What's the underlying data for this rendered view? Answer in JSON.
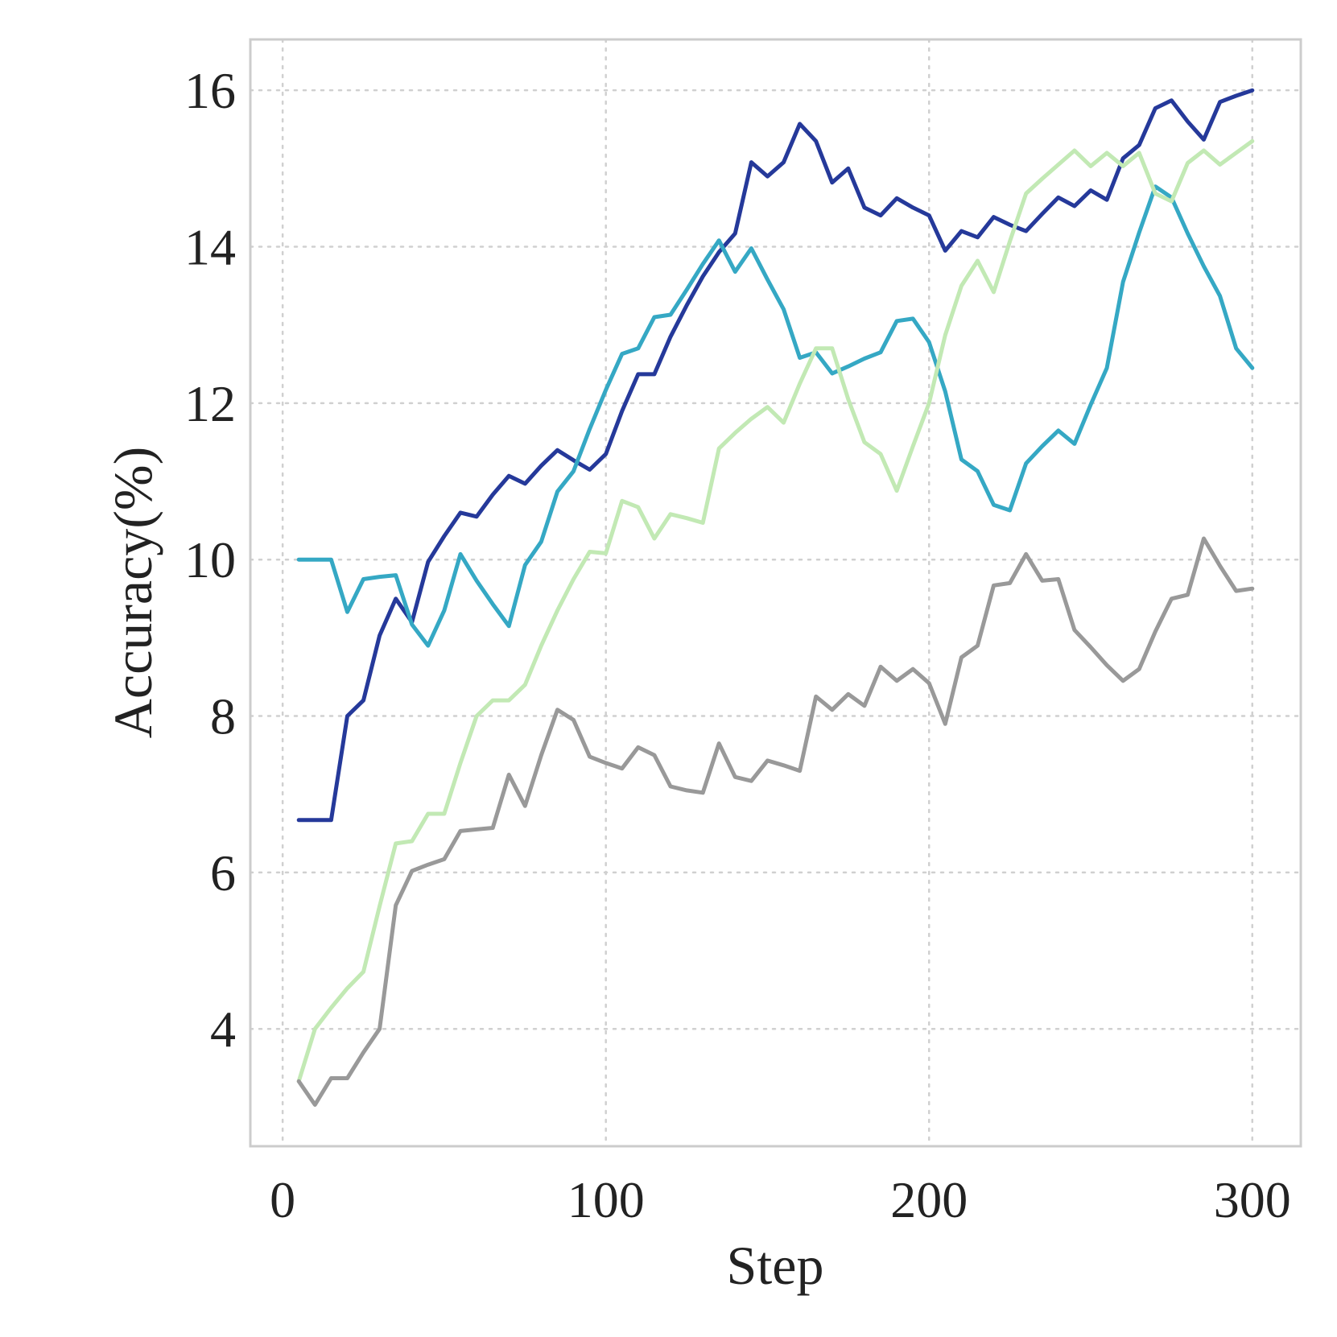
{
  "chart_data": {
    "type": "line",
    "title": "",
    "xlabel": "Step",
    "ylabel": "Accuracy(%)",
    "xlim": [
      -10,
      315
    ],
    "ylim": [
      2.5,
      16.65
    ],
    "xticks": [
      0,
      100,
      200,
      300
    ],
    "yticks": [
      4,
      6,
      8,
      10,
      12,
      14,
      16
    ],
    "grid": true,
    "legend": "none",
    "x": [
      5,
      10,
      15,
      20,
      25,
      30,
      35,
      40,
      45,
      50,
      55,
      60,
      65,
      70,
      75,
      80,
      85,
      90,
      95,
      100,
      105,
      110,
      115,
      120,
      125,
      130,
      135,
      140,
      145,
      150,
      155,
      160,
      165,
      170,
      175,
      180,
      185,
      190,
      195,
      200,
      205,
      210,
      215,
      220,
      225,
      230,
      235,
      240,
      245,
      250,
      255,
      260,
      265,
      270,
      275,
      280,
      285,
      290,
      295,
      300
    ],
    "series": [
      {
        "color": "#25399a",
        "values": [
          6.67,
          6.67,
          6.67,
          8.0,
          8.2,
          9.03,
          9.5,
          9.2,
          9.97,
          10.3,
          10.6,
          10.55,
          10.83,
          11.07,
          10.97,
          11.2,
          11.4,
          11.27,
          11.15,
          11.35,
          11.9,
          12.37,
          12.37,
          12.85,
          13.25,
          13.62,
          13.93,
          14.17,
          15.08,
          14.9,
          15.08,
          15.57,
          15.35,
          14.82,
          15.0,
          14.5,
          14.4,
          14.62,
          14.5,
          14.4,
          13.95,
          14.2,
          14.12,
          14.38,
          14.28,
          14.2,
          14.42,
          14.63,
          14.52,
          14.72,
          14.6,
          15.13,
          15.3,
          15.77,
          15.87,
          15.6,
          15.37,
          15.85,
          15.93,
          16.0
        ]
      },
      {
        "color": "#35a8c4",
        "values": [
          10.0,
          10.0,
          10.0,
          9.33,
          9.75,
          9.78,
          9.8,
          9.17,
          8.9,
          9.35,
          10.07,
          9.73,
          9.43,
          9.15,
          9.93,
          10.23,
          10.87,
          11.13,
          11.67,
          12.17,
          12.63,
          12.7,
          13.1,
          13.13,
          13.45,
          13.78,
          14.08,
          13.68,
          13.98,
          13.58,
          13.2,
          12.58,
          12.65,
          12.38,
          12.47,
          12.57,
          12.65,
          13.05,
          13.08,
          12.78,
          12.15,
          11.28,
          11.13,
          10.7,
          10.63,
          11.23,
          11.45,
          11.65,
          11.48,
          11.98,
          12.45,
          13.55,
          14.18,
          14.77,
          14.63,
          14.17,
          13.75,
          13.37,
          12.7,
          12.45
        ]
      },
      {
        "color": "#c2e9b4",
        "values": [
          3.33,
          4.0,
          4.27,
          4.52,
          4.73,
          5.57,
          6.37,
          6.4,
          6.75,
          6.75,
          7.4,
          8.0,
          8.2,
          8.2,
          8.4,
          8.9,
          9.35,
          9.75,
          10.1,
          10.08,
          10.75,
          10.67,
          10.27,
          10.58,
          10.53,
          10.47,
          11.42,
          11.62,
          11.8,
          11.95,
          11.75,
          12.25,
          12.7,
          12.7,
          12.05,
          11.5,
          11.35,
          10.88,
          11.45,
          12.0,
          12.87,
          13.5,
          13.82,
          13.42,
          14.07,
          14.68,
          14.87,
          15.05,
          15.23,
          15.03,
          15.2,
          15.03,
          15.2,
          14.68,
          14.58,
          15.07,
          15.23,
          15.05,
          15.2,
          15.35
        ]
      },
      {
        "color": "#999999",
        "values": [
          3.33,
          3.03,
          3.37,
          3.37,
          3.7,
          4.0,
          5.58,
          6.02,
          6.1,
          6.17,
          6.53,
          6.55,
          6.57,
          7.25,
          6.85,
          7.5,
          8.08,
          7.95,
          7.48,
          7.4,
          7.33,
          7.6,
          7.5,
          7.1,
          7.05,
          7.02,
          7.65,
          7.22,
          7.17,
          7.43,
          7.37,
          7.3,
          8.25,
          8.08,
          8.28,
          8.13,
          8.63,
          8.45,
          8.6,
          8.42,
          7.9,
          8.75,
          8.9,
          9.67,
          9.7,
          10.07,
          9.73,
          9.75,
          9.1,
          8.88,
          8.65,
          8.45,
          8.6,
          9.08,
          9.5,
          9.55,
          10.27,
          9.92,
          9.6,
          9.63
        ]
      }
    ]
  }
}
